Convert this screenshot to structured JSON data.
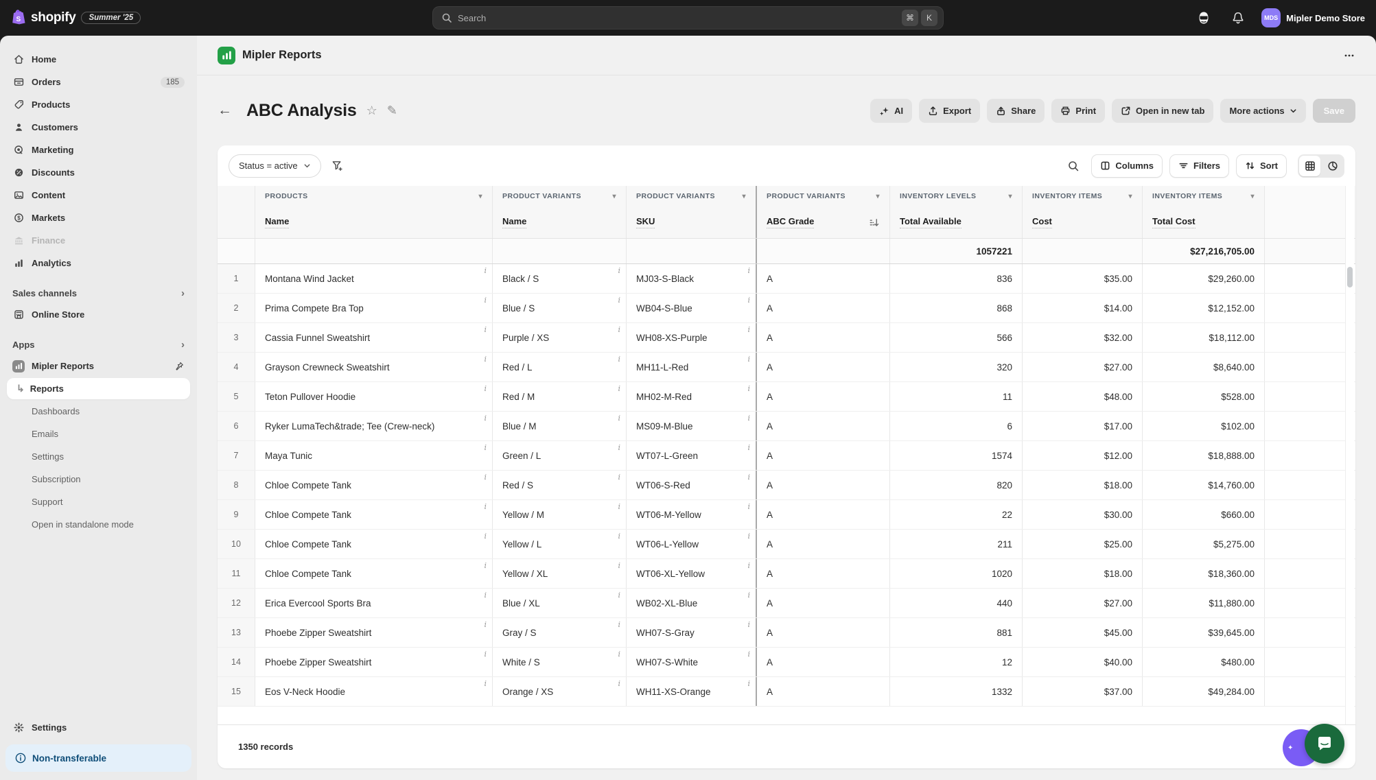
{
  "topbar": {
    "brand": "shopify",
    "version_badge": "Summer '25",
    "search": {
      "placeholder": "Search",
      "shortcut": [
        "⌘",
        "K"
      ]
    },
    "store": {
      "initials": "MDS",
      "name": "Mipler Demo Store",
      "avatar_color": "#8d7bf6"
    }
  },
  "sidebar": {
    "items": [
      {
        "label": "Home"
      },
      {
        "label": "Orders",
        "badge": "185"
      },
      {
        "label": "Products"
      },
      {
        "label": "Customers"
      },
      {
        "label": "Marketing"
      },
      {
        "label": "Discounts"
      },
      {
        "label": "Content"
      },
      {
        "label": "Markets"
      },
      {
        "label": "Finance",
        "disabled": true
      },
      {
        "label": "Analytics"
      }
    ],
    "sales_channels": {
      "label": "Sales channels",
      "items": [
        {
          "label": "Online Store"
        }
      ]
    },
    "apps_section": {
      "label": "Apps"
    },
    "app": {
      "label": "Mipler Reports",
      "subitems": [
        {
          "label": "Reports",
          "active": true
        },
        {
          "label": "Dashboards"
        },
        {
          "label": "Emails"
        },
        {
          "label": "Settings"
        },
        {
          "label": "Subscription"
        },
        {
          "label": "Support"
        },
        {
          "label": "Open in standalone mode"
        }
      ]
    },
    "footer": {
      "settings": "Settings",
      "badge": "Non-transferable"
    }
  },
  "main": {
    "app_header": {
      "title": "Mipler Reports"
    },
    "page_header": {
      "title": "ABC Analysis",
      "actions": {
        "ai": "AI",
        "export": "Export",
        "share": "Share",
        "print": "Print",
        "open_new_tab": "Open in new tab",
        "more_actions": "More actions",
        "save": "Save"
      }
    },
    "toolbar": {
      "status_filter": "Status = active",
      "columns": "Columns",
      "filters": "Filters",
      "sort": "Sort"
    },
    "footer": {
      "records": "1350 records"
    }
  },
  "table": {
    "groups": [
      "PRODUCTS",
      "PRODUCT VARIANTS",
      "PRODUCT VARIANTS",
      "PRODUCT VARIANTS",
      "INVENTORY LEVELS",
      "INVENTORY ITEMS",
      "INVENTORY ITEMS"
    ],
    "columns": [
      "Name",
      "Name",
      "SKU",
      "ABC Grade",
      "Total Available",
      "Cost",
      "Total Cost"
    ],
    "summary": {
      "total_available": "1057221",
      "total_cost": "$27,216,705.00"
    },
    "rows": [
      {
        "num": "1",
        "name": "Montana Wind Jacket",
        "variant": "Black / S",
        "sku": "MJ03-S-Black",
        "grade": "A",
        "available": "836",
        "cost": "$35.00",
        "total_cost": "$29,260.00"
      },
      {
        "num": "2",
        "name": "Prima Compete Bra Top",
        "variant": "Blue / S",
        "sku": "WB04-S-Blue",
        "grade": "A",
        "available": "868",
        "cost": "$14.00",
        "total_cost": "$12,152.00"
      },
      {
        "num": "3",
        "name": "Cassia Funnel Sweatshirt",
        "variant": "Purple / XS",
        "sku": "WH08-XS-Purple",
        "grade": "A",
        "available": "566",
        "cost": "$32.00",
        "total_cost": "$18,112.00"
      },
      {
        "num": "4",
        "name": "Grayson Crewneck Sweatshirt",
        "variant": "Red / L",
        "sku": "MH11-L-Red",
        "grade": "A",
        "available": "320",
        "cost": "$27.00",
        "total_cost": "$8,640.00"
      },
      {
        "num": "5",
        "name": "Teton Pullover Hoodie",
        "variant": "Red / M",
        "sku": "MH02-M-Red",
        "grade": "A",
        "available": "11",
        "cost": "$48.00",
        "total_cost": "$528.00"
      },
      {
        "num": "6",
        "name": "Ryker LumaTech&trade; Tee (Crew-neck)",
        "variant": "Blue / M",
        "sku": "MS09-M-Blue",
        "grade": "A",
        "available": "6",
        "cost": "$17.00",
        "total_cost": "$102.00"
      },
      {
        "num": "7",
        "name": "Maya Tunic",
        "variant": "Green / L",
        "sku": "WT07-L-Green",
        "grade": "A",
        "available": "1574",
        "cost": "$12.00",
        "total_cost": "$18,888.00"
      },
      {
        "num": "8",
        "name": "Chloe Compete Tank",
        "variant": "Red / S",
        "sku": "WT06-S-Red",
        "grade": "A",
        "available": "820",
        "cost": "$18.00",
        "total_cost": "$14,760.00"
      },
      {
        "num": "9",
        "name": "Chloe Compete Tank",
        "variant": "Yellow / M",
        "sku": "WT06-M-Yellow",
        "grade": "A",
        "available": "22",
        "cost": "$30.00",
        "total_cost": "$660.00"
      },
      {
        "num": "10",
        "name": "Chloe Compete Tank",
        "variant": "Yellow / L",
        "sku": "WT06-L-Yellow",
        "grade": "A",
        "available": "211",
        "cost": "$25.00",
        "total_cost": "$5,275.00"
      },
      {
        "num": "11",
        "name": "Chloe Compete Tank",
        "variant": "Yellow / XL",
        "sku": "WT06-XL-Yellow",
        "grade": "A",
        "available": "1020",
        "cost": "$18.00",
        "total_cost": "$18,360.00"
      },
      {
        "num": "12",
        "name": "Erica Evercool Sports Bra",
        "variant": "Blue / XL",
        "sku": "WB02-XL-Blue",
        "grade": "A",
        "available": "440",
        "cost": "$27.00",
        "total_cost": "$11,880.00"
      },
      {
        "num": "13",
        "name": "Phoebe Zipper Sweatshirt",
        "variant": "Gray / S",
        "sku": "WH07-S-Gray",
        "grade": "A",
        "available": "881",
        "cost": "$45.00",
        "total_cost": "$39,645.00"
      },
      {
        "num": "14",
        "name": "Phoebe Zipper Sweatshirt",
        "variant": "White / S",
        "sku": "WH07-S-White",
        "grade": "A",
        "available": "12",
        "cost": "$40.00",
        "total_cost": "$480.00"
      },
      {
        "num": "15",
        "name": "Eos V-Neck Hoodie",
        "variant": "Orange / XS",
        "sku": "WH11-XS-Orange",
        "grade": "A",
        "available": "1332",
        "cost": "$37.00",
        "total_cost": "$49,284.00"
      }
    ]
  }
}
